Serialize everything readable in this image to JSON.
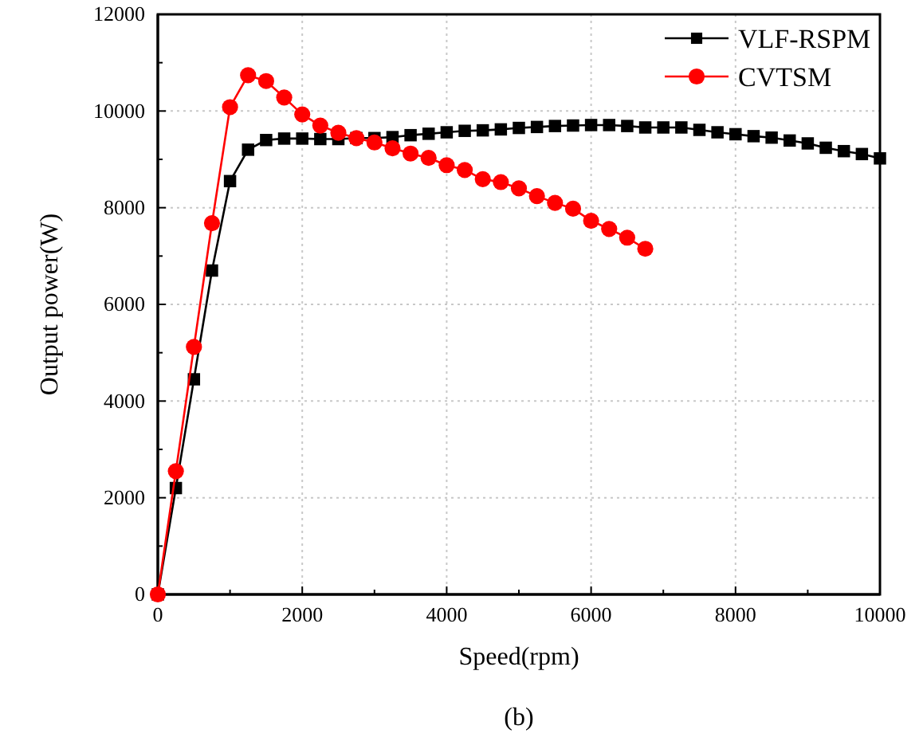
{
  "chart_data": {
    "type": "line",
    "xlabel": "Speed(rpm)",
    "ylabel": "Output power(W)",
    "annotations": [
      "(b)"
    ],
    "xlim": [
      0,
      10000
    ],
    "xticks": [
      0,
      2000,
      4000,
      6000,
      8000,
      10000
    ],
    "ylim": [
      0,
      12000
    ],
    "yticks": [
      0,
      2000,
      4000,
      6000,
      8000,
      10000,
      12000
    ],
    "grid": true,
    "legend": "top right",
    "line_style": "solid",
    "series": [
      {
        "name": "VLF-RSPM",
        "color": "#000000",
        "marker": "square",
        "x": [
          0,
          250,
          500,
          750,
          1000,
          1250,
          1500,
          1750,
          2000,
          2250,
          2500,
          2750,
          3000,
          3250,
          3500,
          3750,
          4000,
          4250,
          4500,
          4750,
          5000,
          5250,
          5500,
          5750,
          6000,
          6250,
          6500,
          6750,
          7000,
          7250,
          7500,
          7750,
          8000,
          8250,
          8500,
          8750,
          9000,
          9250,
          9500,
          9750,
          10000
        ],
        "values": [
          0,
          2200,
          4450,
          6700,
          8550,
          9200,
          9400,
          9430,
          9430,
          9420,
          9420,
          9440,
          9440,
          9460,
          9500,
          9530,
          9560,
          9590,
          9600,
          9620,
          9650,
          9670,
          9690,
          9700,
          9710,
          9710,
          9690,
          9660,
          9660,
          9660,
          9610,
          9560,
          9520,
          9480,
          9450,
          9390,
          9330,
          9240,
          9170,
          9110,
          9020
        ]
      },
      {
        "name": "CVTSM",
        "color": "#ff0000",
        "marker": "circle",
        "x": [
          0,
          250,
          500,
          750,
          1000,
          1250,
          1500,
          1750,
          2000,
          2250,
          2500,
          2750,
          3000,
          3250,
          3500,
          3750,
          4000,
          4250,
          4500,
          4750,
          5000,
          5250,
          5500,
          5750,
          6000,
          6250,
          6500,
          6750
        ],
        "values": [
          0,
          2550,
          5120,
          7680,
          10080,
          10740,
          10620,
          10280,
          9930,
          9700,
          9550,
          9440,
          9350,
          9230,
          9120,
          9030,
          8880,
          8780,
          8590,
          8530,
          8400,
          8240,
          8100,
          7980,
          7730,
          7560,
          7380,
          7150
        ]
      }
    ]
  }
}
